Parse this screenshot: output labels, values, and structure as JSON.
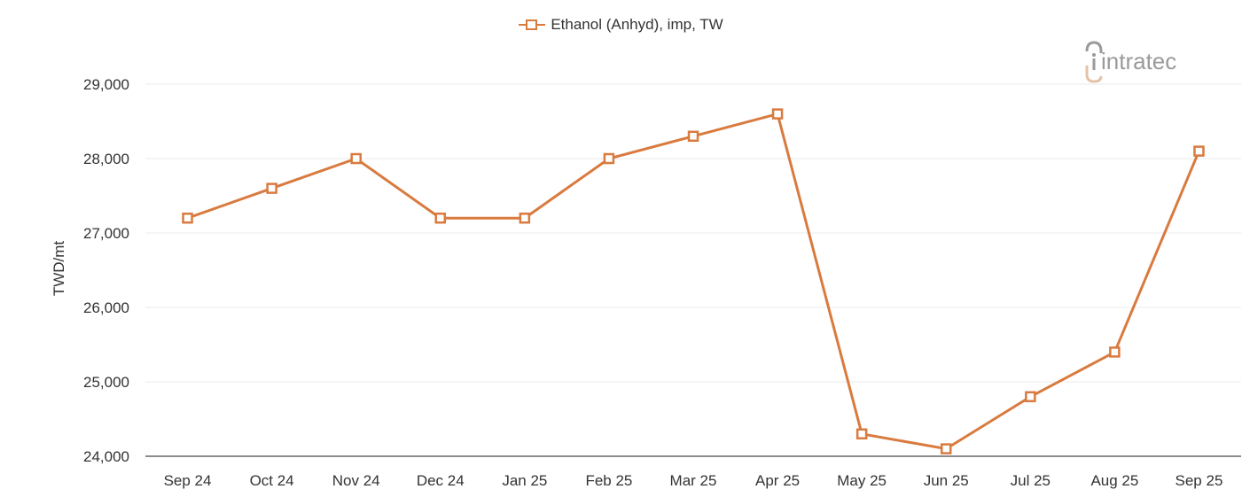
{
  "chart_data": {
    "type": "line",
    "title": "",
    "xlabel": "",
    "ylabel": "TWD/mt",
    "ylim": [
      24000,
      29000
    ],
    "yticks": [
      24000,
      25000,
      26000,
      27000,
      28000,
      29000
    ],
    "ytick_labels": [
      "24,000",
      "25,000",
      "26,000",
      "27,000",
      "28,000",
      "29,000"
    ],
    "grid": true,
    "legend_position": "top",
    "categories": [
      "Sep 24",
      "Oct 24",
      "Nov 24",
      "Dec 24",
      "Jan 25",
      "Feb 25",
      "Mar 25",
      "Apr 25",
      "May 25",
      "Jun 25",
      "Jul 25",
      "Aug 25",
      "Sep 25"
    ],
    "series": [
      {
        "name": "Ethanol (Anhyd), imp, TW",
        "color": "#d97a3f",
        "marker": "square-open",
        "values": [
          27200,
          27600,
          28000,
          27200,
          27200,
          28000,
          28300,
          28600,
          24300,
          24100,
          24800,
          25400,
          28100
        ]
      }
    ]
  },
  "legend": {
    "label": "Ethanol (Anhyd), imp, TW"
  },
  "logo": {
    "text": "intratec"
  },
  "colors": {
    "series": "#d97a3f",
    "grid": "#ebebeb",
    "axis": "#555555",
    "text": "#333333",
    "logo_gray": "#9a9a9a",
    "logo_tan": "#e3c3a6"
  }
}
